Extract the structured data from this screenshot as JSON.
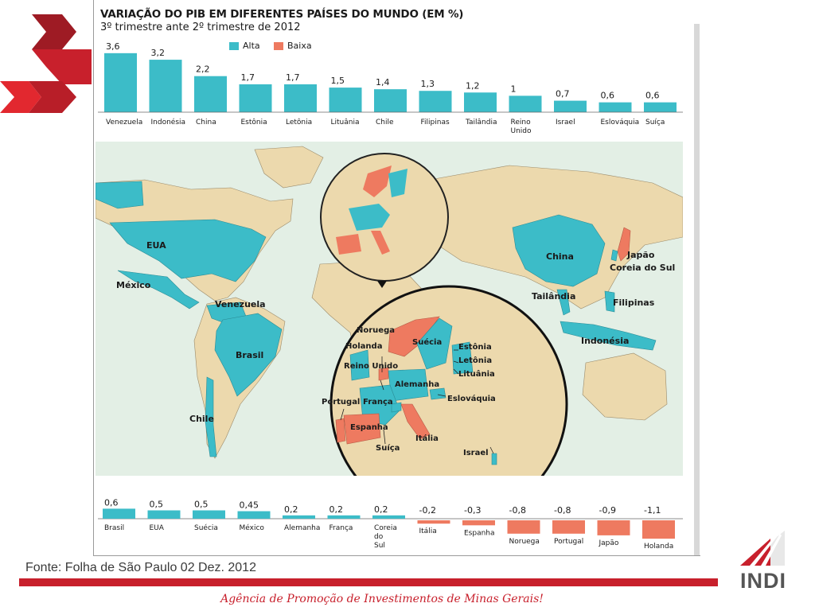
{
  "header": {
    "title": "VARIAÇÃO DO PIB EM DIFERENTES PAÍSES DO MUNDO (EM %)",
    "subtitle": "3º trimestre ante 2º trimestre de 2012"
  },
  "legend": [
    {
      "label": "Alta",
      "color": "#3cbcc8"
    },
    {
      "label": "Baixa",
      "color": "#ee7a60"
    }
  ],
  "colors": {
    "up": "#3cbcc8",
    "down": "#ee7a60",
    "land": "#ecd9ad",
    "water": "#e3efe5",
    "brand_red": "#c8202c"
  },
  "chart_data": [
    {
      "type": "bar",
      "categories": [
        "Venezuela",
        "Indonésia",
        "China",
        "Estônia",
        "Letônia",
        "Lituânia",
        "Chile",
        "Filipinas",
        "Tailândia",
        "Reino Unido",
        "Israel",
        "Eslováquia",
        "Suíça"
      ],
      "values": [
        3.6,
        3.2,
        2.2,
        1.7,
        1.7,
        1.5,
        1.4,
        1.3,
        1.2,
        1,
        0.7,
        0.6,
        0.6
      ],
      "value_labels": [
        "3,6",
        "3,2",
        "2,2",
        "1,7",
        "1,7",
        "1,5",
        "1,4",
        "1,3",
        "1,2",
        "1",
        "0,7",
        "0,6",
        "0,6"
      ]
    },
    {
      "type": "bar",
      "categories": [
        "Brasil",
        "EUA",
        "Suécia",
        "México",
        "Alemanha",
        "França",
        "Coreia do Sul",
        "Itália",
        "Espanha",
        "Noruega",
        "Portugal",
        "Japão",
        "Holanda"
      ],
      "values": [
        0.6,
        0.5,
        0.5,
        0.45,
        0.2,
        0.2,
        0.2,
        -0.2,
        -0.3,
        -0.8,
        -0.8,
        -0.9,
        -1.1
      ],
      "value_labels": [
        "0,6",
        "0,5",
        "0,5",
        "0,45",
        "0,2",
        "0,2",
        "0,2",
        "-0,2",
        "-0,3",
        "-0,8",
        "-0,8",
        "-0,9",
        "-1,1"
      ]
    }
  ],
  "map": {
    "world_labels": [
      "EUA",
      "México",
      "Venezuela",
      "Brasil",
      "Chile",
      "China",
      "Japão",
      "Coreia do Sul",
      "Tailândia",
      "Filipinas",
      "Indonésia"
    ],
    "europe_labels": [
      "Noruega",
      "Suécia",
      "Holanda",
      "Reino Unido",
      "Estônia",
      "Letônia",
      "Lituânia",
      "Alemanha",
      "Eslováquia",
      "Portugal",
      "França",
      "Espanha",
      "Itália",
      "Suíça",
      "Israel"
    ]
  },
  "footer": {
    "source": "Fonte: Folha de São Paulo 02 Dez. 2012",
    "tagline": "Agência de Promoção de  Investimentos de Minas Gerais!",
    "logo": "INDI"
  }
}
